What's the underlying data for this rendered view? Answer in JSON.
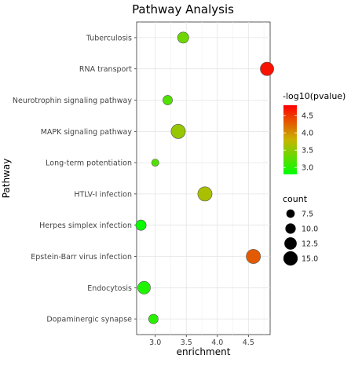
{
  "chart_data": {
    "type": "scatter",
    "title": "Pathway Analysis",
    "xlabel": "enrichment",
    "ylabel": "Pathway",
    "xlim": [
      2.7,
      4.85
    ],
    "xticks": [
      3.0,
      3.5,
      4.0,
      4.5
    ],
    "xtick_labels": [
      "3.0",
      "3.5",
      "4.0",
      "4.5"
    ],
    "grid": true,
    "categories": [
      "Tuberculosis",
      "RNA transport",
      "Neurotrophin signaling pathway",
      "MAPK signaling pathway",
      "Long-term potentiation",
      "HTLV-I infection",
      "Herpes simplex infection",
      "Epstein-Barr virus infection",
      "Endocytosis",
      "Dopaminergic synapse"
    ],
    "points": [
      {
        "pathway": "Tuberculosis",
        "enrichment": 3.45,
        "count": 11,
        "neg_log10_pvalue": 3.35
      },
      {
        "pathway": "RNA transport",
        "enrichment": 4.8,
        "count": 14,
        "neg_log10_pvalue": 4.7
      },
      {
        "pathway": "Neurotrophin signaling pathway",
        "enrichment": 3.2,
        "count": 9,
        "neg_log10_pvalue": 3.2
      },
      {
        "pathway": "MAPK signaling pathway",
        "enrichment": 3.37,
        "count": 15,
        "neg_log10_pvalue": 3.55
      },
      {
        "pathway": "Long-term potentiation",
        "enrichment": 3.0,
        "count": 6,
        "neg_log10_pvalue": 3.2
      },
      {
        "pathway": "HTLV-I infection",
        "enrichment": 3.8,
        "count": 15,
        "neg_log10_pvalue": 3.65
      },
      {
        "pathway": "Herpes simplex infection",
        "enrichment": 2.77,
        "count": 10,
        "neg_log10_pvalue": 2.85
      },
      {
        "pathway": "Epstein-Barr virus infection",
        "enrichment": 4.58,
        "count": 15,
        "neg_log10_pvalue": 4.3
      },
      {
        "pathway": "Endocytosis",
        "enrichment": 2.82,
        "count": 13,
        "neg_log10_pvalue": 2.95
      },
      {
        "pathway": "Dopaminergic synapse",
        "enrichment": 2.97,
        "count": 9,
        "neg_log10_pvalue": 3.0
      }
    ],
    "color_legend": {
      "title": "-log10(pvalue)",
      "ticks": [
        3.0,
        3.5,
        4.0,
        4.5
      ],
      "tick_labels": [
        "3.0",
        "3.5",
        "4.0",
        "4.5"
      ],
      "range": [
        2.8,
        4.8
      ],
      "low_color": "#00ff00",
      "high_color": "#ff0000",
      "position": "right"
    },
    "size_legend": {
      "title": "count",
      "values": [
        7.5,
        10.0,
        12.5,
        15.0
      ],
      "labels": [
        "7.5",
        "10.0",
        "12.5",
        "15.0"
      ],
      "position": "right"
    }
  }
}
